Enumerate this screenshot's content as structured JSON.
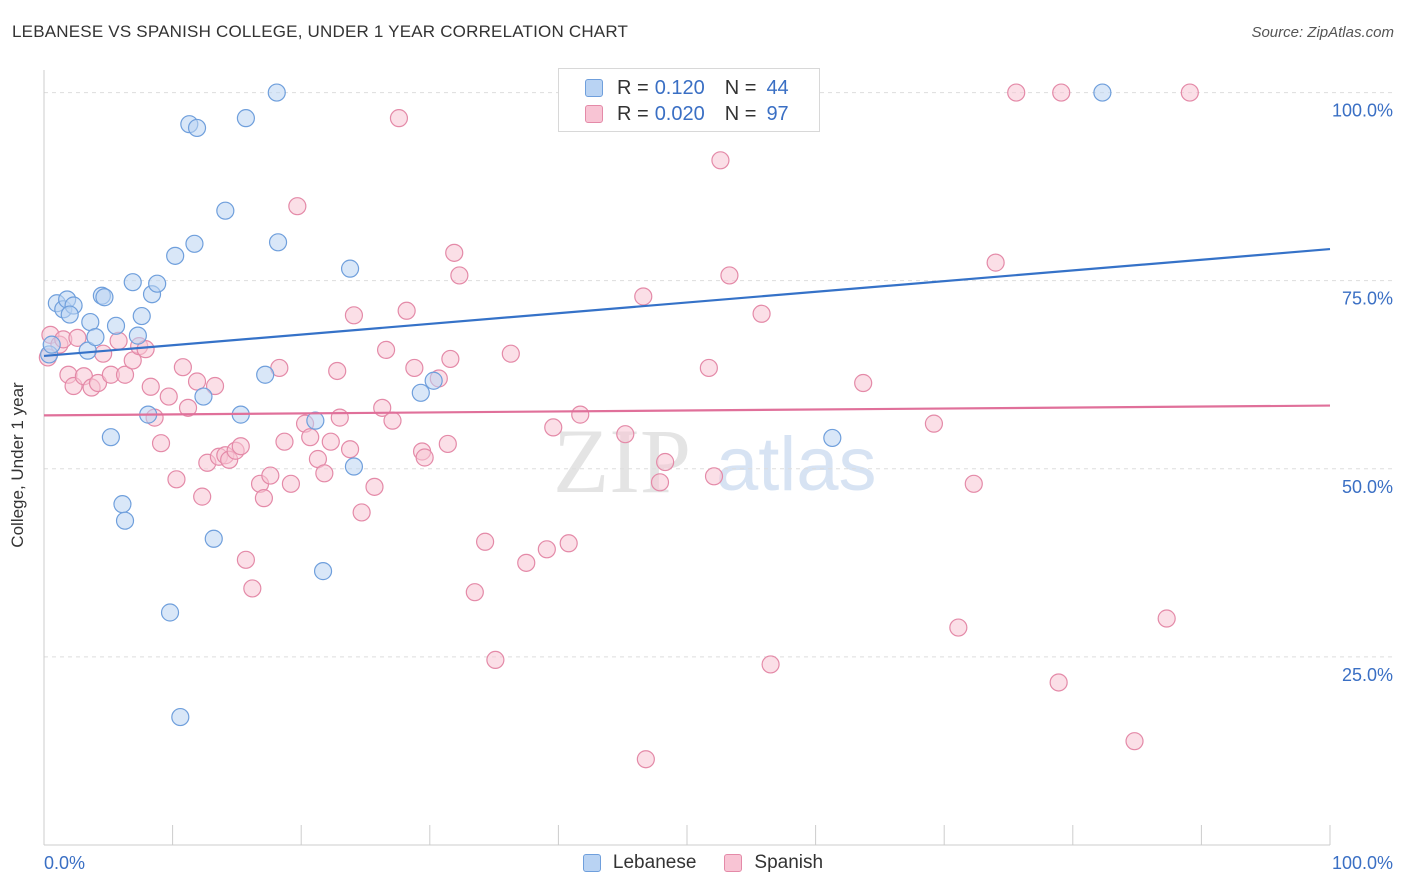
{
  "chart_data": {
    "type": "scatter",
    "title": "LEBANESE VS SPANISH COLLEGE, UNDER 1 YEAR CORRELATION CHART",
    "source": "Source: ZipAtlas.com",
    "xlabel": "",
    "ylabel": "College, Under 1 year",
    "xlim": [
      0,
      100
    ],
    "ylim": [
      0,
      103
    ],
    "x_tick_labels": [
      "0.0%",
      "100.0%"
    ],
    "y_ticks": [
      25,
      50,
      75,
      100
    ],
    "y_tick_labels": [
      "25.0%",
      "50.0%",
      "75.0%",
      "100.0%"
    ],
    "watermark": {
      "zip": "ZIP",
      "atlas": "atlas"
    },
    "colors": {
      "lebanese_fill": "#b9d3f3",
      "lebanese_stroke": "#6f9fdc",
      "lebanese_line": "#3572c8",
      "spanish_fill": "#f8c4d4",
      "spanish_stroke": "#e48aa8",
      "spanish_line": "#e0709a",
      "label_blue": "#3a6fc4"
    },
    "legend": {
      "r_label": "R =",
      "n_label": "N =",
      "rows": [
        {
          "series": "Lebanese",
          "r": "0.120",
          "n": "44"
        },
        {
          "series": "Spanish",
          "r": "0.020",
          "n": "97"
        }
      ]
    },
    "series": [
      {
        "name": "Lebanese",
        "trend": {
          "x": [
            0,
            100
          ],
          "y": [
            65.0,
            79.2
          ]
        },
        "points": [
          [
            0.4,
            65.2
          ],
          [
            1.0,
            72.0
          ],
          [
            1.5,
            71.2
          ],
          [
            1.8,
            72.5
          ],
          [
            2.3,
            71.7
          ],
          [
            3.4,
            65.7
          ],
          [
            3.6,
            69.5
          ],
          [
            4.0,
            67.5
          ],
          [
            4.5,
            73.0
          ],
          [
            4.7,
            72.8
          ],
          [
            5.2,
            54.2
          ],
          [
            5.6,
            69.0
          ],
          [
            6.1,
            45.3
          ],
          [
            6.3,
            43.1
          ],
          [
            6.9,
            74.8
          ],
          [
            7.3,
            67.7
          ],
          [
            7.6,
            70.3
          ],
          [
            8.1,
            57.2
          ],
          [
            8.4,
            73.2
          ],
          [
            8.8,
            74.6
          ],
          [
            9.8,
            30.9
          ],
          [
            10.2,
            78.3
          ],
          [
            10.6,
            17.0
          ],
          [
            11.3,
            95.8
          ],
          [
            11.9,
            95.3
          ],
          [
            11.7,
            79.9
          ],
          [
            12.4,
            59.6
          ],
          [
            13.2,
            40.7
          ],
          [
            14.1,
            84.3
          ],
          [
            15.3,
            57.2
          ],
          [
            15.7,
            96.6
          ],
          [
            17.2,
            62.5
          ],
          [
            18.1,
            100.0
          ],
          [
            18.2,
            80.1
          ],
          [
            21.1,
            56.4
          ],
          [
            21.7,
            36.4
          ],
          [
            23.8,
            76.6
          ],
          [
            24.1,
            50.3
          ],
          [
            29.3,
            60.1
          ],
          [
            30.3,
            61.7
          ],
          [
            61.3,
            54.1
          ],
          [
            82.3,
            100.0
          ],
          [
            0.6,
            66.5
          ],
          [
            2.0,
            70.5
          ]
        ]
      },
      {
        "name": "Spanish",
        "trend": {
          "x": [
            0,
            100
          ],
          "y": [
            57.1,
            58.4
          ]
        },
        "points": [
          [
            0.3,
            64.8
          ],
          [
            0.5,
            67.8
          ],
          [
            1.2,
            66.5
          ],
          [
            1.5,
            67.2
          ],
          [
            1.9,
            62.5
          ],
          [
            2.3,
            61.0
          ],
          [
            2.6,
            67.4
          ],
          [
            3.1,
            62.3
          ],
          [
            3.7,
            60.8
          ],
          [
            4.2,
            61.4
          ],
          [
            4.6,
            65.3
          ],
          [
            5.2,
            62.5
          ],
          [
            5.8,
            67.0
          ],
          [
            6.3,
            62.5
          ],
          [
            6.9,
            64.4
          ],
          [
            7.4,
            66.3
          ],
          [
            7.9,
            65.9
          ],
          [
            8.3,
            60.9
          ],
          [
            8.6,
            56.8
          ],
          [
            9.1,
            53.4
          ],
          [
            9.7,
            59.6
          ],
          [
            10.3,
            48.6
          ],
          [
            10.8,
            63.5
          ],
          [
            11.2,
            58.1
          ],
          [
            11.9,
            61.6
          ],
          [
            12.3,
            46.3
          ],
          [
            12.7,
            50.8
          ],
          [
            13.3,
            61.0
          ],
          [
            13.6,
            51.6
          ],
          [
            14.1,
            51.8
          ],
          [
            14.4,
            51.2
          ],
          [
            14.9,
            52.4
          ],
          [
            15.3,
            53.0
          ],
          [
            15.7,
            37.9
          ],
          [
            16.2,
            34.1
          ],
          [
            16.8,
            48.0
          ],
          [
            17.1,
            46.1
          ],
          [
            17.6,
            49.1
          ],
          [
            18.3,
            63.4
          ],
          [
            18.7,
            53.6
          ],
          [
            19.2,
            48.0
          ],
          [
            19.7,
            84.9
          ],
          [
            20.3,
            56.0
          ],
          [
            20.7,
            54.2
          ],
          [
            21.3,
            51.3
          ],
          [
            21.8,
            49.4
          ],
          [
            22.3,
            53.6
          ],
          [
            22.8,
            63.0
          ],
          [
            23.0,
            56.8
          ],
          [
            23.8,
            52.6
          ],
          [
            24.1,
            70.4
          ],
          [
            24.7,
            44.2
          ],
          [
            25.7,
            47.6
          ],
          [
            26.3,
            58.1
          ],
          [
            26.6,
            65.8
          ],
          [
            27.1,
            56.4
          ],
          [
            27.6,
            96.6
          ],
          [
            28.2,
            71.0
          ],
          [
            28.8,
            63.4
          ],
          [
            29.4,
            52.3
          ],
          [
            29.6,
            51.5
          ],
          [
            30.7,
            62.0
          ],
          [
            31.4,
            53.3
          ],
          [
            31.6,
            64.6
          ],
          [
            31.9,
            78.7
          ],
          [
            32.3,
            75.7
          ],
          [
            33.5,
            33.6
          ],
          [
            34.3,
            40.3
          ],
          [
            35.1,
            24.6
          ],
          [
            36.3,
            65.3
          ],
          [
            37.5,
            37.5
          ],
          [
            39.1,
            39.3
          ],
          [
            39.6,
            55.5
          ],
          [
            40.8,
            40.1
          ],
          [
            41.7,
            57.2
          ],
          [
            45.2,
            54.6
          ],
          [
            46.6,
            72.9
          ],
          [
            46.8,
            11.4
          ],
          [
            47.9,
            48.2
          ],
          [
            48.3,
            50.9
          ],
          [
            51.7,
            63.4
          ],
          [
            52.1,
            49.0
          ],
          [
            52.6,
            91.0
          ],
          [
            53.3,
            75.7
          ],
          [
            55.8,
            70.6
          ],
          [
            56.5,
            24.0
          ],
          [
            63.7,
            61.4
          ],
          [
            69.2,
            56.0
          ],
          [
            71.1,
            28.9
          ],
          [
            72.3,
            48.0
          ],
          [
            74.0,
            77.4
          ],
          [
            75.6,
            100.0
          ],
          [
            79.1,
            100.0
          ],
          [
            78.9,
            21.6
          ],
          [
            84.8,
            13.8
          ],
          [
            87.3,
            30.1
          ],
          [
            89.1,
            100.0
          ]
        ]
      }
    ]
  }
}
